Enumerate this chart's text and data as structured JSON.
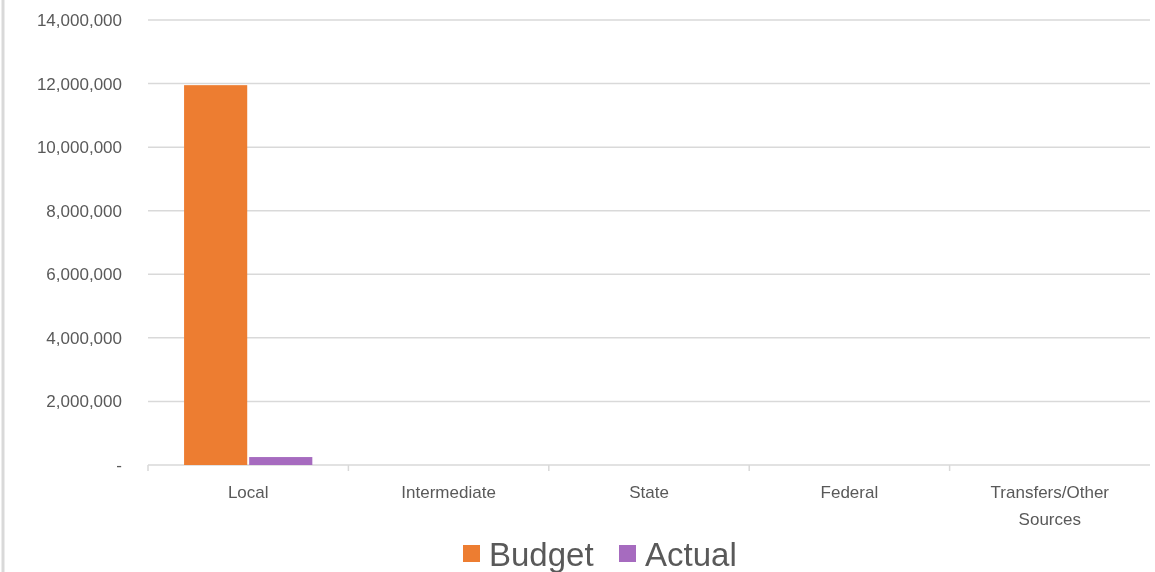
{
  "chart_data": {
    "type": "bar",
    "categories": [
      "Local",
      "Intermediate",
      "State",
      "Federal",
      "Transfers/Other Sources"
    ],
    "series": [
      {
        "name": "Budget",
        "color": "#ed7d31",
        "values": [
          11950000,
          0,
          0,
          0,
          0
        ]
      },
      {
        "name": "Actual",
        "color": "#a66bbf",
        "values": [
          250000,
          0,
          0,
          0,
          0
        ]
      }
    ],
    "ylim": [
      0,
      14000000
    ],
    "yticks": [
      {
        "value": 0,
        "label": "-"
      },
      {
        "value": 2000000,
        "label": "2,000,000"
      },
      {
        "value": 4000000,
        "label": "4,000,000"
      },
      {
        "value": 6000000,
        "label": "6,000,000"
      },
      {
        "value": 8000000,
        "label": "8,000,000"
      },
      {
        "value": 10000000,
        "label": "10,000,000"
      },
      {
        "value": 12000000,
        "label": "12,000,000"
      },
      {
        "value": 14000000,
        "label": "14,000,000"
      }
    ],
    "grid": "y",
    "legend": "bottom"
  }
}
